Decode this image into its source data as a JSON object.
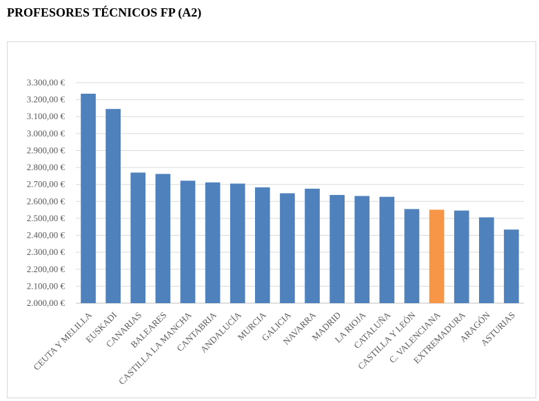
{
  "page": {
    "title": "PROFESORES TÉCNICOS FP (A2)"
  },
  "chart_data": {
    "type": "bar",
    "title": "",
    "xlabel": "",
    "ylabel": "",
    "ylim": [
      2000,
      3300
    ],
    "ytick_step": 100,
    "ytick_labels": [
      "2.000,00 €",
      "2.100,00 €",
      "2.200,00 €",
      "2.300,00 €",
      "2.400,00 €",
      "2.500,00 €",
      "2.600,00 €",
      "2.700,00 €",
      "2.800,00 €",
      "2.900,00 €",
      "3.000,00 €",
      "3.100,00 €",
      "3.200,00 €",
      "3.300,00 €"
    ],
    "grid": true,
    "legend": "none",
    "bar_color": "#4f81bd",
    "highlight_color": "#f79646",
    "highlight_category": "C. VALENCIANA",
    "categories": [
      "CEUTA Y MELILLA",
      "EUSKADI",
      "CANARIAS",
      "BALEARES",
      "CASTILLA LA MANCHA",
      "CANTABRIA",
      "ANDALUCÍA",
      "MURCIA",
      "GALICIA",
      "NAVARRA",
      "MADRID",
      "LA RIOJA",
      "CATALUÑA",
      "CASTILLA Y LEÓN",
      "C. VALENCIANA",
      "EXTREMADURA",
      "ARAGÓN",
      "ASTURIAS"
    ],
    "values": [
      3235,
      3145,
      2770,
      2762,
      2722,
      2712,
      2705,
      2683,
      2648,
      2675,
      2638,
      2632,
      2627,
      2555,
      2551,
      2546,
      2506,
      2434
    ]
  }
}
